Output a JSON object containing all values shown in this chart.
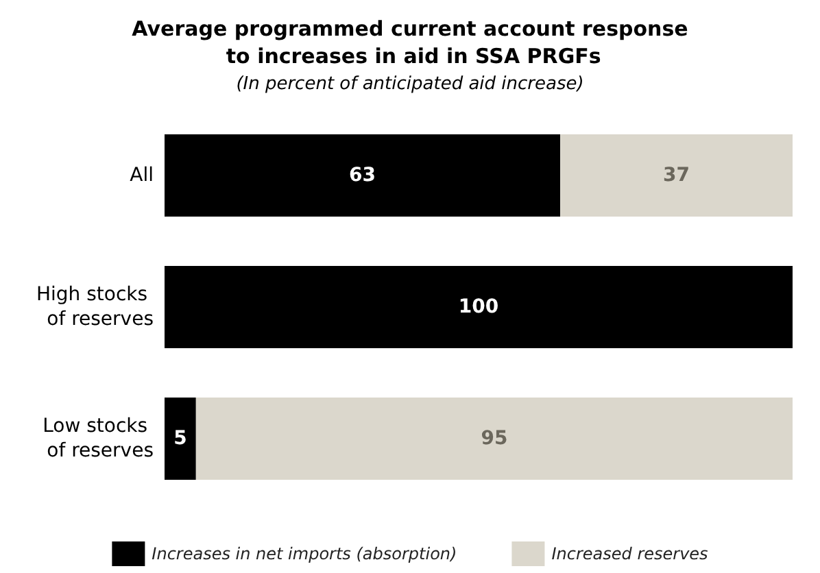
{
  "chart_data": {
    "type": "bar",
    "orientation": "horizontal",
    "stacked": true,
    "title": "Average programmed current account response to increases in aid in SSA PRGFs",
    "subtitle": "(In percent of anticipated aid increase)",
    "categories": [
      "All",
      "High stocks of reserves",
      "Low stocks of reserves"
    ],
    "series": [
      {
        "name": "Increases in net imports (absorption)",
        "color": "#000000",
        "values": [
          63,
          100,
          5
        ]
      },
      {
        "name": "Increased reserves",
        "color": "#dbd7cc",
        "values": [
          37,
          null,
          95
        ]
      }
    ],
    "data_labels": true,
    "legend": "bottom",
    "grid": false
  }
}
